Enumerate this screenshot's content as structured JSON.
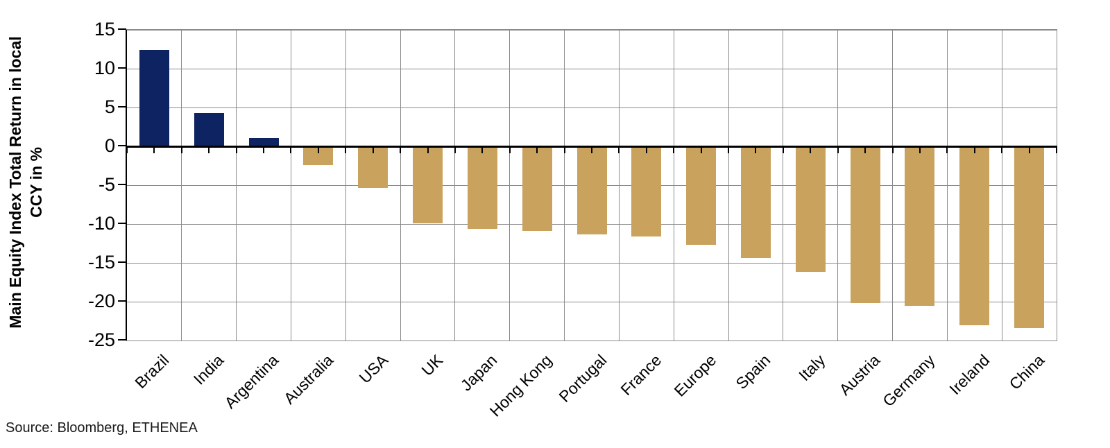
{
  "chart_data": {
    "type": "bar",
    "categories": [
      "Brazil",
      "India",
      "Argentina",
      "Australia",
      "USA",
      "UK",
      "Japan",
      "Hong Kong",
      "Portugal",
      "France",
      "Europe",
      "Spain",
      "Italy",
      "Austria",
      "Germany",
      "Ireland",
      "China"
    ],
    "values": [
      12.4,
      4.3,
      1.1,
      -2.4,
      -5.4,
      -9.9,
      -10.6,
      -10.9,
      -11.3,
      -11.6,
      -12.7,
      -14.4,
      -16.2,
      -20.2,
      -20.5,
      -23.0,
      -23.4
    ],
    "title": "",
    "xlabel": "",
    "ylabel": "Main Equity Index Total Return in local CCY in %",
    "ylabel_lines": [
      "Main Equity Index Total Return in local",
      "CCY in %"
    ],
    "yticks": [
      15,
      10,
      5,
      0,
      -5,
      -10,
      -15,
      -20,
      -25
    ],
    "ylim": [
      -25,
      15
    ],
    "grid": true,
    "legend_position": "none",
    "positive_color": "#0e2361",
    "negative_color": "#c9a25e",
    "gridline_color": "#8a8a8a",
    "axis_color": "#000000"
  },
  "footer": {
    "source": "Source: Bloomberg, ETHENEA"
  }
}
